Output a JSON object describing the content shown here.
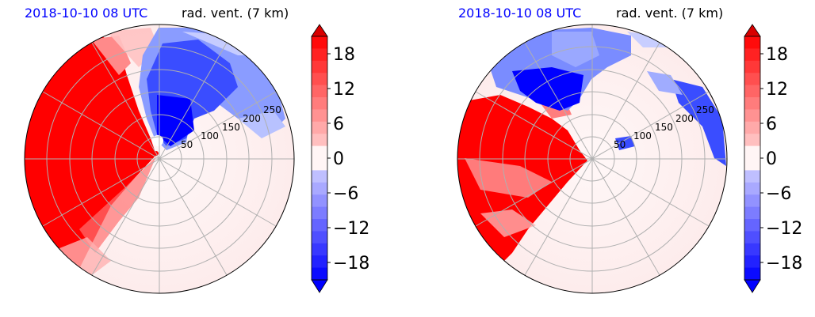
{
  "chart_data": [
    {
      "type": "heatmap",
      "projection": "polar",
      "title_left": "2018-10-10 08 UTC",
      "title_right": "rad. vent. (7 km)",
      "radial_ticks": [
        "50",
        "100",
        "150",
        "200",
        "250"
      ],
      "angular_gridlines": 12,
      "colorbar": {
        "ticks": [
          18,
          12,
          6,
          0,
          -6,
          -12,
          -18
        ],
        "tick_labels": [
          "18",
          "12",
          "6",
          "0",
          "−6",
          "−12",
          "−18"
        ],
        "range": [
          -21,
          21
        ],
        "extend": "both",
        "colors": {
          "positive": "#ff0000",
          "negative": "#0000ff",
          "neutral": "#fff5f5"
        }
      },
      "pattern": "positive (red) west/southwest sector, negative (blue) north-center area"
    },
    {
      "type": "heatmap",
      "projection": "polar",
      "title_left": "2018-10-10 08 UTC",
      "title_right": "rad. vent. (7 km)",
      "radial_ticks": [
        "50",
        "100",
        "150",
        "200",
        "250"
      ],
      "angular_gridlines": 12,
      "colorbar": {
        "ticks": [
          18,
          12,
          6,
          0,
          -6,
          -12,
          -18
        ],
        "tick_labels": [
          "18",
          "12",
          "6",
          "0",
          "−6",
          "−12",
          "−18"
        ],
        "range": [
          -21,
          21
        ],
        "extend": "both",
        "colors": {
          "positive": "#ff0000",
          "negative": "#0000ff",
          "neutral": "#fff5f5"
        }
      },
      "pattern": "positive (red) west/southwest sector, negative (blue) north and east edge"
    }
  ]
}
